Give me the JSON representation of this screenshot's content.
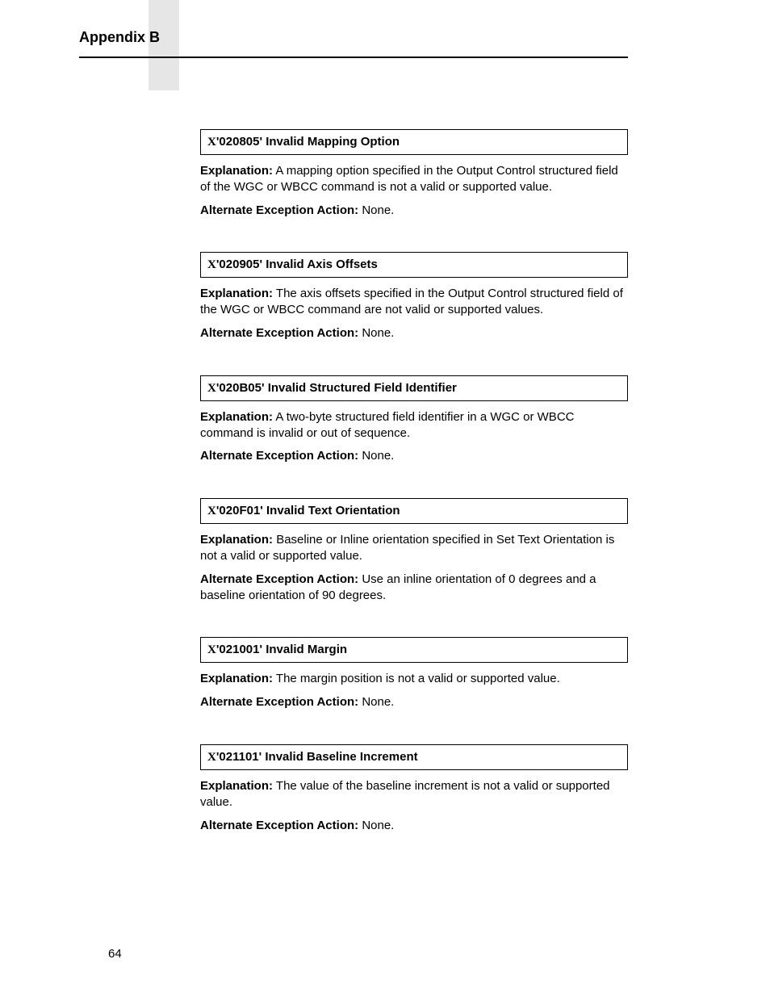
{
  "header": {
    "appendix_label": "Appendix B"
  },
  "labels": {
    "explanation": "Explanation:",
    "alternate": "Alternate Exception Action:"
  },
  "entries": [
    {
      "code_prefix": "X",
      "code": "'020805' Invalid Mapping Option",
      "explanation": "A mapping option specified in the Output Control structured field of the WGC or WBCC command is not a valid or supported value.",
      "alternate": "None."
    },
    {
      "code_prefix": "X",
      "code": "'020905' Invalid Axis Offsets",
      "explanation": "The axis offsets specified in the Output Control structured field of the WGC or WBCC command are not valid or supported values.",
      "alternate": "None."
    },
    {
      "code_prefix": "X",
      "code": "'020B05' Invalid Structured Field Identifier",
      "explanation": "A two-byte structured field identifier in a WGC or WBCC command is invalid or out of sequence.",
      "alternate": "None."
    },
    {
      "code_prefix": "X",
      "code": "'020F01' Invalid Text Orientation",
      "explanation": "Baseline or Inline orientation specified in Set Text Orientation is not a valid or supported value.",
      "alternate": "Use an inline orientation of 0 degrees and a baseline orientation of 90 degrees."
    },
    {
      "code_prefix": "X",
      "code": "'021001' Invalid Margin",
      "explanation": "The margin position is not a valid or supported value.",
      "alternate": "None."
    },
    {
      "code_prefix": "X",
      "code": "'021101' Invalid Baseline Increment",
      "explanation": "The value of the baseline increment is not a valid or supported value.",
      "alternate": "None."
    }
  ],
  "page_number": "64"
}
